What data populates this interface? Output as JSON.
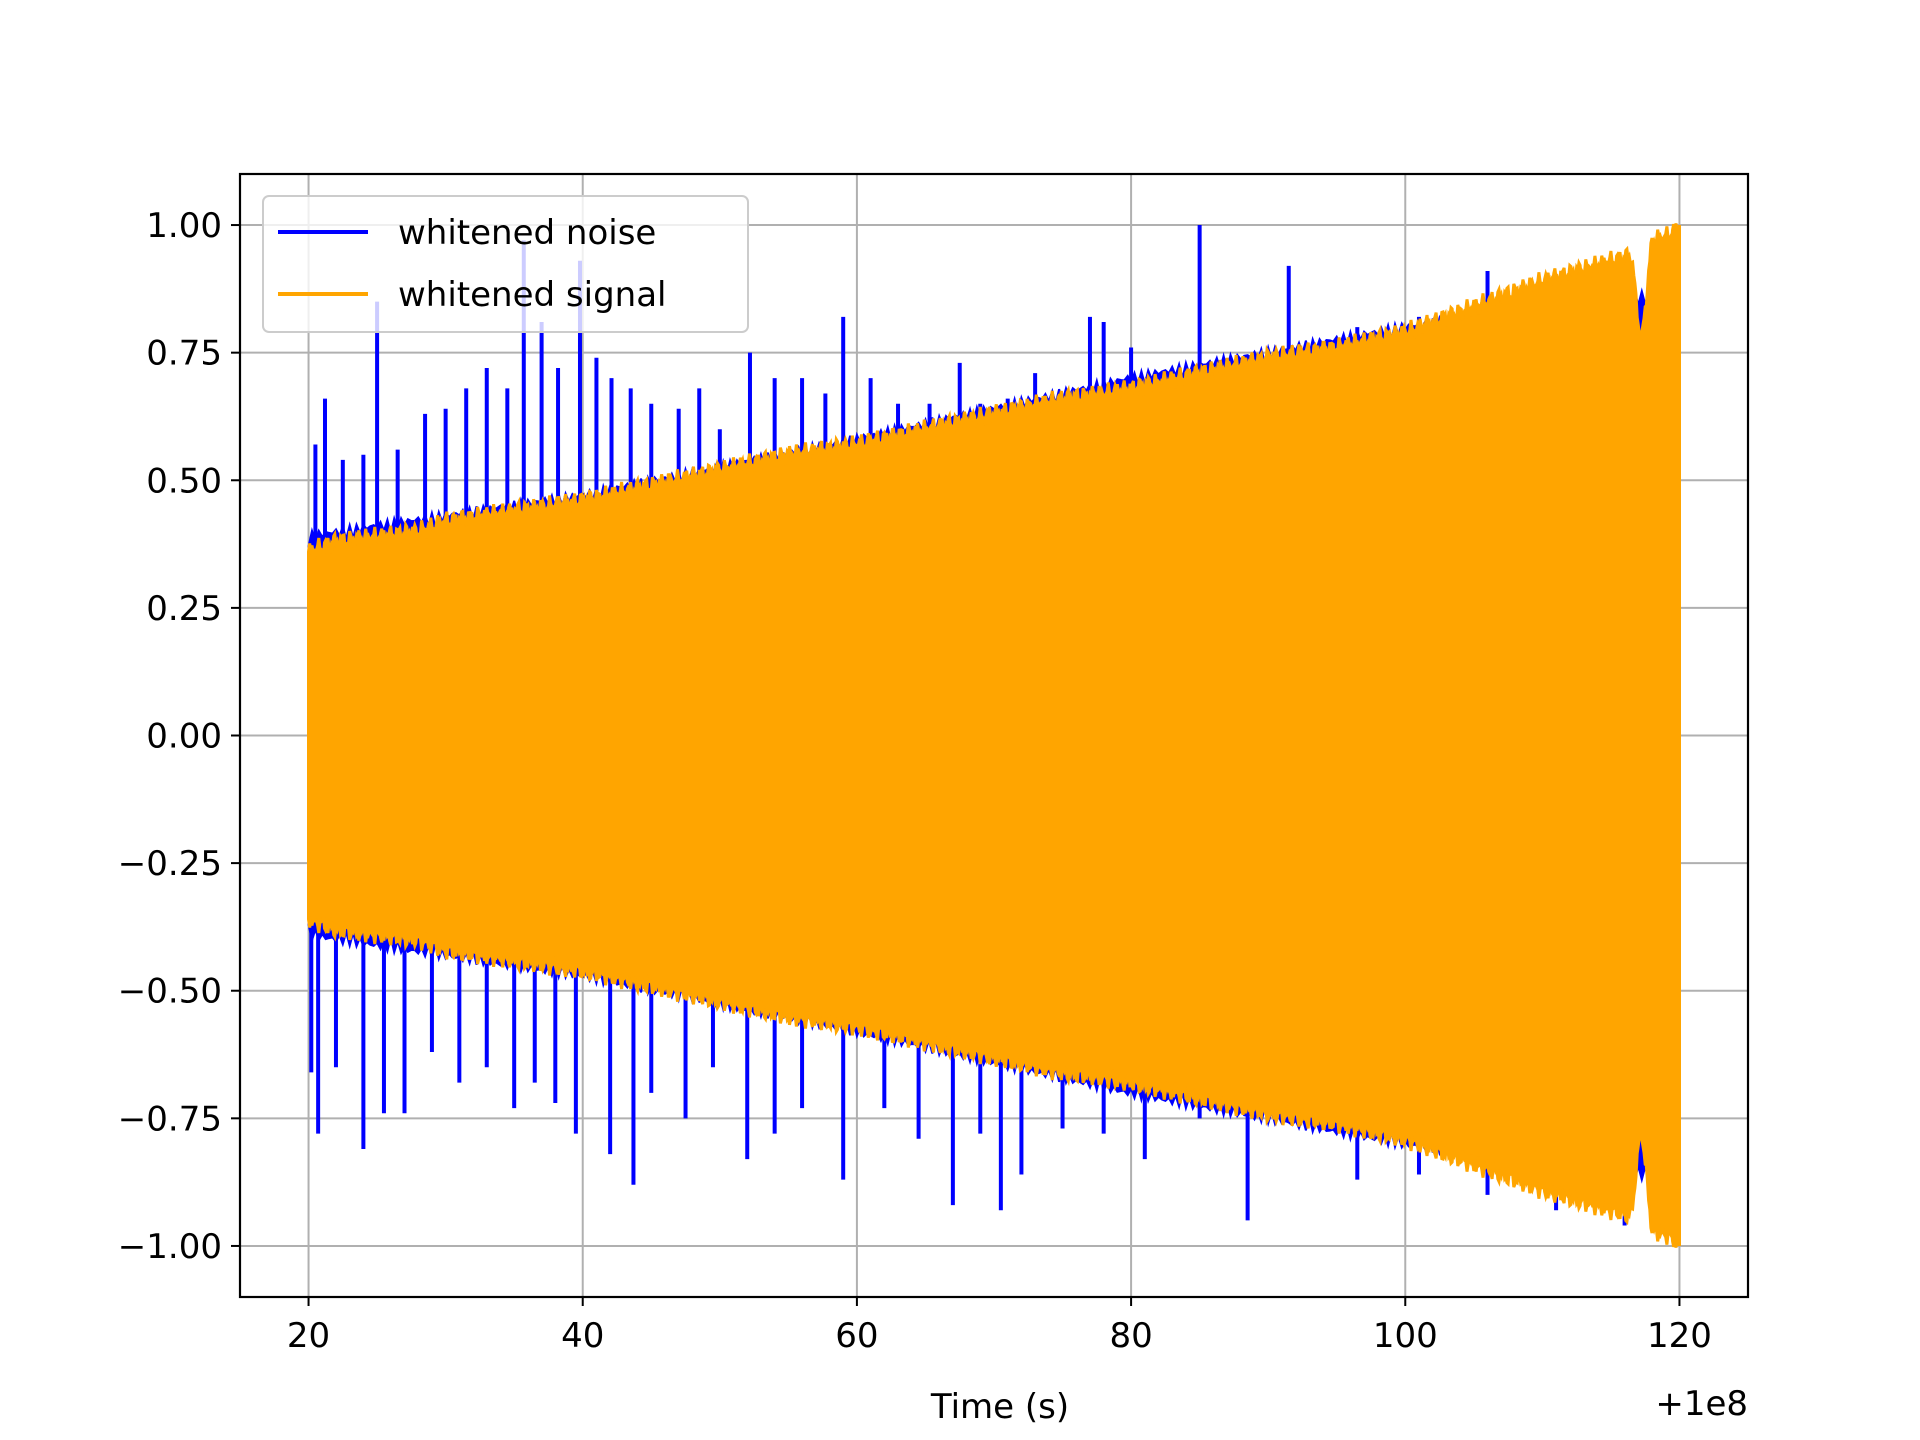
{
  "chart_data": {
    "type": "line",
    "title": "",
    "xlabel": "Time (s)",
    "ylabel": "",
    "x_offset_label": "+1e8",
    "xlim": [
      15,
      125
    ],
    "ylim": [
      -1.1,
      1.1
    ],
    "xticks": [
      20,
      40,
      60,
      80,
      100,
      120
    ],
    "xtick_labels": [
      "20",
      "40",
      "60",
      "80",
      "100",
      "120"
    ],
    "yticks": [
      1.0,
      0.75,
      0.5,
      0.25,
      0.0,
      -0.25,
      -0.5,
      -0.75,
      -1.0
    ],
    "ytick_labels": [
      "1.00",
      "0.75",
      "0.50",
      "0.25",
      "0.00",
      "−0.25",
      "−0.50",
      "−0.75",
      "−1.00"
    ],
    "grid": true,
    "legend_position": "upper-left",
    "series": [
      {
        "name": "whitened noise",
        "color": "#0000ff",
        "x_range": [
          20,
          120
        ],
        "baseline_envelope": [
          [
            20,
            0.37
          ],
          [
            40,
            0.45
          ],
          [
            60,
            0.56
          ],
          [
            80,
            0.68
          ],
          [
            100,
            0.78
          ],
          [
            120,
            0.85
          ]
        ],
        "spikes": [
          [
            20.5,
            0.57
          ],
          [
            21.2,
            0.66
          ],
          [
            22.5,
            0.54
          ],
          [
            24.0,
            0.55
          ],
          [
            25.0,
            0.85
          ],
          [
            26.5,
            0.56
          ],
          [
            28.5,
            0.63
          ],
          [
            30.0,
            0.64
          ],
          [
            31.5,
            0.68
          ],
          [
            33.0,
            0.72
          ],
          [
            34.5,
            0.68
          ],
          [
            35.7,
            0.97
          ],
          [
            37.0,
            0.81
          ],
          [
            38.2,
            0.72
          ],
          [
            39.8,
            0.93
          ],
          [
            41.0,
            0.74
          ],
          [
            42.1,
            0.7
          ],
          [
            43.5,
            0.68
          ],
          [
            45.0,
            0.65
          ],
          [
            47.0,
            0.64
          ],
          [
            48.5,
            0.68
          ],
          [
            50.0,
            0.6
          ],
          [
            52.2,
            0.75
          ],
          [
            54.0,
            0.7
          ],
          [
            56.0,
            0.7
          ],
          [
            57.7,
            0.67
          ],
          [
            59.0,
            0.82
          ],
          [
            61.0,
            0.7
          ],
          [
            63.0,
            0.65
          ],
          [
            65.3,
            0.65
          ],
          [
            67.5,
            0.73
          ],
          [
            69.0,
            0.65
          ],
          [
            71.0,
            0.66
          ],
          [
            73.0,
            0.71
          ],
          [
            74.5,
            0.65
          ],
          [
            77.0,
            0.82
          ],
          [
            78.0,
            0.81
          ],
          [
            80.0,
            0.76
          ],
          [
            85.0,
            1.0
          ],
          [
            91.5,
            0.92
          ],
          [
            96.5,
            0.8
          ],
          [
            101.0,
            0.82
          ],
          [
            106.0,
            0.91
          ]
        ],
        "neg_spikes": [
          [
            20.2,
            -0.66
          ],
          [
            20.7,
            -0.78
          ],
          [
            22.0,
            -0.65
          ],
          [
            24.0,
            -0.81
          ],
          [
            25.5,
            -0.74
          ],
          [
            27.0,
            -0.74
          ],
          [
            29.0,
            -0.62
          ],
          [
            31.0,
            -0.68
          ],
          [
            33.0,
            -0.65
          ],
          [
            35.0,
            -0.73
          ],
          [
            36.5,
            -0.68
          ],
          [
            38.0,
            -0.72
          ],
          [
            39.5,
            -0.78
          ],
          [
            42.0,
            -0.82
          ],
          [
            43.7,
            -0.88
          ],
          [
            45.0,
            -0.7
          ],
          [
            47.5,
            -0.75
          ],
          [
            49.5,
            -0.65
          ],
          [
            52.0,
            -0.83
          ],
          [
            54.0,
            -0.78
          ],
          [
            56.0,
            -0.73
          ],
          [
            59.0,
            -0.87
          ],
          [
            62.0,
            -0.73
          ],
          [
            64.5,
            -0.79
          ],
          [
            67.0,
            -0.92
          ],
          [
            69.0,
            -0.78
          ],
          [
            70.5,
            -0.93
          ],
          [
            72.0,
            -0.86
          ],
          [
            75.0,
            -0.77
          ],
          [
            78.0,
            -0.78
          ],
          [
            81.0,
            -0.83
          ],
          [
            85.0,
            -0.75
          ],
          [
            88.5,
            -0.95
          ],
          [
            92.0,
            -0.75
          ],
          [
            96.5,
            -0.87
          ],
          [
            101.0,
            -0.86
          ],
          [
            106.0,
            -0.9
          ],
          [
            111.0,
            -0.93
          ],
          [
            116.0,
            -0.96
          ]
        ]
      },
      {
        "name": "whitened signal",
        "color": "#ffa500",
        "x_range": [
          20,
          120
        ],
        "envelope": [
          [
            20,
            0.36
          ],
          [
            22,
            0.38
          ],
          [
            25,
            0.39
          ],
          [
            28,
            0.4
          ],
          [
            30,
            0.42
          ],
          [
            35,
            0.44
          ],
          [
            40,
            0.46
          ],
          [
            45,
            0.49
          ],
          [
            50,
            0.52
          ],
          [
            55,
            0.55
          ],
          [
            60,
            0.57
          ],
          [
            65,
            0.6
          ],
          [
            70,
            0.63
          ],
          [
            75,
            0.66
          ],
          [
            78,
            0.67
          ],
          [
            80,
            0.68
          ],
          [
            85,
            0.71
          ],
          [
            90,
            0.74
          ],
          [
            95,
            0.76
          ],
          [
            100,
            0.79
          ],
          [
            105,
            0.84
          ],
          [
            110,
            0.89
          ],
          [
            115,
            0.93
          ],
          [
            116.5,
            0.94
          ],
          [
            117.2,
            0.76
          ],
          [
            118.0,
            0.97
          ],
          [
            119.3,
            0.98
          ],
          [
            120,
            1.0
          ]
        ]
      }
    ]
  }
}
